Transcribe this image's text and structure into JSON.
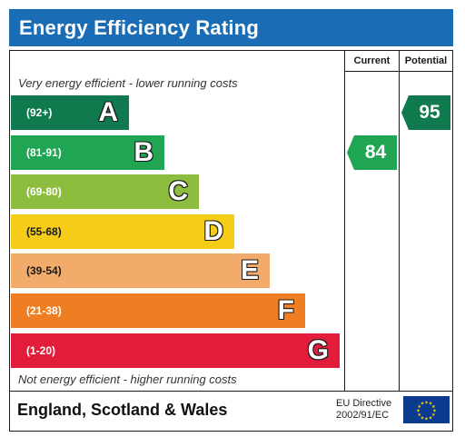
{
  "title": "Energy Efficiency Rating",
  "columns": {
    "current": "Current",
    "potential": "Potential"
  },
  "notes": {
    "top": "Very energy efficient - lower running costs",
    "bottom": "Not energy efficient - higher running costs"
  },
  "footer": {
    "region": "England, Scotland & Wales",
    "directive_line1": "EU Directive",
    "directive_line2": "2002/91/EC"
  },
  "chart_data": {
    "type": "bar",
    "categories": [
      "A",
      "B",
      "C",
      "D",
      "E",
      "F",
      "G"
    ],
    "ranges": [
      "(92+)",
      "(81-91)",
      "(69-80)",
      "(55-68)",
      "(39-54)",
      "(21-38)",
      "(1-20)"
    ],
    "band_min": [
      92,
      81,
      69,
      55,
      39,
      21,
      1
    ],
    "band_max": [
      100,
      91,
      80,
      68,
      54,
      38,
      20
    ],
    "colors": [
      "#0f7a4e",
      "#20a652",
      "#8cbd3f",
      "#f5cc18",
      "#f2ab6b",
      "#ef7d22",
      "#e21d3c"
    ],
    "current": {
      "value": 84,
      "band": "B",
      "color": "#20a652"
    },
    "potential": {
      "value": 95,
      "band": "A",
      "color": "#0f7a4e"
    }
  }
}
